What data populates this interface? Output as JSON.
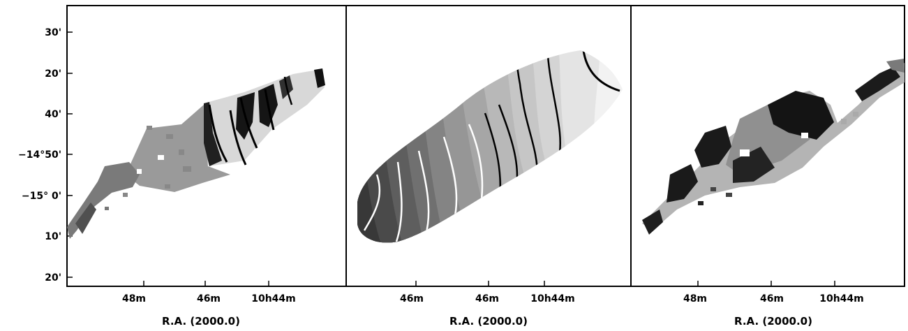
{
  "figure": {
    "panels": [
      {
        "name": "left",
        "ylabels": [
          "30'",
          "20'",
          "40'",
          "−14°50'",
          "−15° 0'",
          "10'",
          "20'"
        ],
        "xlabels": [
          "48m",
          "46m",
          "10h44m"
        ],
        "xlabel": "R.A. (2000.0)"
      },
      {
        "name": "middle",
        "ylabels": [],
        "xlabels": [
          "46m",
          "46m",
          "10h44m"
        ],
        "xlabel": "R.A. (2000.0)"
      },
      {
        "name": "right",
        "ylabels": [],
        "xlabels": [
          "48m",
          "46m",
          "10h44m"
        ],
        "xlabel": "R.A. (2000.0)"
      }
    ],
    "colors": {
      "frame": "#000000",
      "contour_dark": "#000000",
      "contour_light": "#ffffff"
    }
  }
}
